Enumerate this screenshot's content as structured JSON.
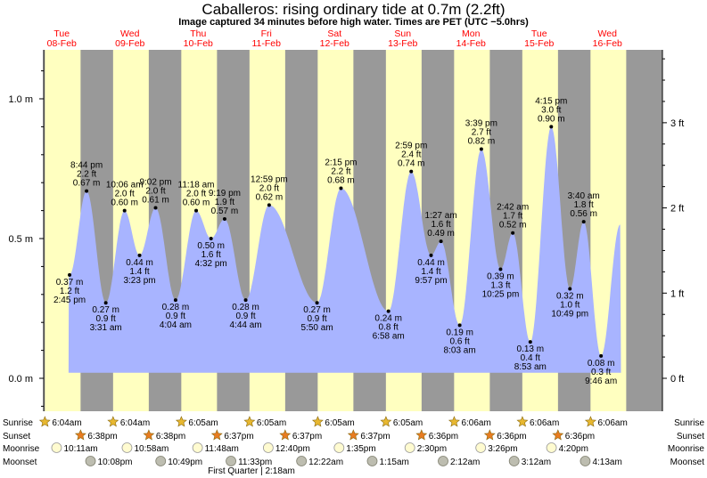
{
  "title": "Caballeros: rising  ordinary tide at 0.7m (2.2ft)",
  "subtitle": "Image captured 34 minutes before high water. Times are PET (UTC −5.0hrs)",
  "chart_data": {
    "type": "area",
    "x_range_days": [
      0,
      9
    ],
    "x_start": "08-Feb 00:00",
    "ylim_m": [
      -0.15,
      1.15
    ],
    "left_axis": {
      "unit": "m",
      "ticks": [
        {
          "v": 0.0,
          "label": "0.0 m"
        },
        {
          "v": 0.5,
          "label": "0.5 m"
        },
        {
          "v": 1.0,
          "label": "1.0 m"
        }
      ]
    },
    "right_axis": {
      "unit": "ft",
      "ticks": [
        {
          "v": 0,
          "label": "0 ft"
        },
        {
          "v": 1,
          "label": "1 ft"
        },
        {
          "v": 2,
          "label": "2 ft"
        },
        {
          "v": 3,
          "label": "3 ft"
        }
      ]
    },
    "days": [
      {
        "dow": "Tue",
        "date": "08-Feb",
        "sunrise": "6:04am",
        "sunset": "6:38pm",
        "moonrise": "10:11am",
        "moonset": "10:08pm"
      },
      {
        "dow": "Wed",
        "date": "09-Feb",
        "sunrise": "6:04am",
        "sunset": "6:38pm",
        "moonrise": "10:58am",
        "moonset": "10:49pm"
      },
      {
        "dow": "Thu",
        "date": "10-Feb",
        "sunrise": "6:05am",
        "sunset": "6:37pm",
        "moonrise": "11:48am",
        "moonset": "11:33pm"
      },
      {
        "dow": "Fri",
        "date": "11-Feb",
        "sunrise": "6:05am",
        "sunset": "6:37pm",
        "moonrise": "12:40pm",
        "moonset": ""
      },
      {
        "dow": "Sat",
        "date": "12-Feb",
        "sunrise": "6:05am",
        "sunset": "6:37pm",
        "moonrise": "1:35pm",
        "moonset": "12:22am"
      },
      {
        "dow": "Sun",
        "date": "13-Feb",
        "sunrise": "6:05am",
        "sunset": "6:36pm",
        "moonrise": "2:30pm",
        "moonset": "1:15am"
      },
      {
        "dow": "Mon",
        "date": "14-Feb",
        "sunrise": "6:06am",
        "sunset": "6:36pm",
        "moonrise": "3:26pm",
        "moonset": "2:12am"
      },
      {
        "dow": "Tue",
        "date": "15-Feb",
        "sunrise": "6:06am",
        "sunset": "6:36pm",
        "moonrise": "4:20pm",
        "moonset": "3:12am"
      },
      {
        "dow": "Wed",
        "date": "16-Feb",
        "sunrise": "6:06am",
        "sunset": "",
        "moonrise": "",
        "moonset": "4:13am"
      }
    ],
    "tides": [
      {
        "t": "2:45 pm",
        "m": "0.37 m",
        "ft": "1.2 ft",
        "x": 0.615,
        "v": 0.37,
        "kind": "low"
      },
      {
        "t": "8:44 pm",
        "m": "0.67 m",
        "ft": "2.2 ft",
        "x": 0.864,
        "v": 0.67,
        "kind": "high"
      },
      {
        "t": "3:31 am",
        "m": "0.27 m",
        "ft": "0.9 ft",
        "x": 1.146,
        "v": 0.27,
        "kind": "low"
      },
      {
        "t": "10:06 am",
        "m": "0.60 m",
        "ft": "2.0 ft",
        "x": 1.421,
        "v": 0.6,
        "kind": "high"
      },
      {
        "t": "3:23 pm",
        "m": "0.44 m",
        "ft": "1.4 ft",
        "x": 1.641,
        "v": 0.44,
        "kind": "low"
      },
      {
        "t": "9:02 pm",
        "m": "0.61 m",
        "ft": "2.0 ft",
        "x": 1.876,
        "v": 0.61,
        "kind": "high"
      },
      {
        "t": "4:04 am",
        "m": "0.28 m",
        "ft": "0.9 ft",
        "x": 2.169,
        "v": 0.28,
        "kind": "low"
      },
      {
        "t": "11:18 am",
        "m": "0.60 m",
        "ft": "2.0 ft",
        "x": 2.471,
        "v": 0.6,
        "kind": "high"
      },
      {
        "t": "4:32 pm",
        "m": "0.50 m",
        "ft": "1.6 ft",
        "x": 2.689,
        "v": 0.5,
        "kind": "low"
      },
      {
        "t": "9:19 pm",
        "m": "0.57 m",
        "ft": "1.9 ft",
        "x": 2.888,
        "v": 0.57,
        "kind": "high"
      },
      {
        "t": "4:44 am",
        "m": "0.28 m",
        "ft": "0.9 ft",
        "x": 3.197,
        "v": 0.28,
        "kind": "low"
      },
      {
        "t": "12:59 pm",
        "m": "0.62 m",
        "ft": "2.0 ft",
        "x": 3.541,
        "v": 0.62,
        "kind": "high"
      },
      {
        "t": "5:50 am",
        "m": "0.27 m",
        "ft": "0.9 ft",
        "x": 4.243,
        "v": 0.27,
        "kind": "low"
      },
      {
        "t": "2:15 pm",
        "m": "0.68 m",
        "ft": "2.2 ft",
        "x": 4.594,
        "v": 0.68,
        "kind": "high"
      },
      {
        "t": "6:58 am",
        "m": "0.24 m",
        "ft": "0.8 ft",
        "x": 5.29,
        "v": 0.24,
        "kind": "low"
      },
      {
        "t": "2:59 pm",
        "m": "0.74 m",
        "ft": "2.4 ft",
        "x": 5.624,
        "v": 0.74,
        "kind": "high"
      },
      {
        "t": "9:57 pm",
        "m": "0.44 m",
        "ft": "1.4 ft",
        "x": 5.915,
        "v": 0.44,
        "kind": "low"
      },
      {
        "t": "1:27 am",
        "m": "0.49 m",
        "ft": "1.6 ft",
        "x": 6.06,
        "v": 0.49,
        "kind": "high"
      },
      {
        "t": "8:03 am",
        "m": "0.19 m",
        "ft": "0.6 ft",
        "x": 6.335,
        "v": 0.19,
        "kind": "low"
      },
      {
        "t": "3:39 pm",
        "m": "0.82 m",
        "ft": "2.7 ft",
        "x": 6.652,
        "v": 0.82,
        "kind": "high"
      },
      {
        "t": "10:25 pm",
        "m": "0.39 m",
        "ft": "1.3 ft",
        "x": 6.934,
        "v": 0.39,
        "kind": "low"
      },
      {
        "t": "2:42 am",
        "m": "0.52 m",
        "ft": "1.7 ft",
        "x": 7.113,
        "v": 0.52,
        "kind": "high"
      },
      {
        "t": "8:53 am",
        "m": "0.13 m",
        "ft": "0.4 ft",
        "x": 7.37,
        "v": 0.13,
        "kind": "low"
      },
      {
        "t": "4:15 pm",
        "m": "0.90 m",
        "ft": "3.0 ft",
        "x": 7.677,
        "v": 0.9,
        "kind": "high"
      },
      {
        "t": "10:49 pm",
        "m": "0.32 m",
        "ft": "1.0 ft",
        "x": 7.951,
        "v": 0.32,
        "kind": "low"
      },
      {
        "t": "3:40 am",
        "m": "0.56 m",
        "ft": "1.8 ft",
        "x": 8.153,
        "v": 0.56,
        "kind": "high"
      },
      {
        "t": "9:46 am",
        "m": "0.08 m",
        "ft": "0.3 ft",
        "x": 8.407,
        "v": 0.08,
        "kind": "low"
      }
    ],
    "row_labels": {
      "sunrise": "Sunrise",
      "sunset": "Sunset",
      "moonrise": "Moonrise",
      "moonset": "Moonset"
    },
    "moon_phase": "First Quarter | 2:18am",
    "colors": {
      "night": "#999999",
      "day": "#ffffc0",
      "tide": "#a8b4ff",
      "sun": "#e8b830",
      "sunset_star": "#e87c20"
    }
  }
}
